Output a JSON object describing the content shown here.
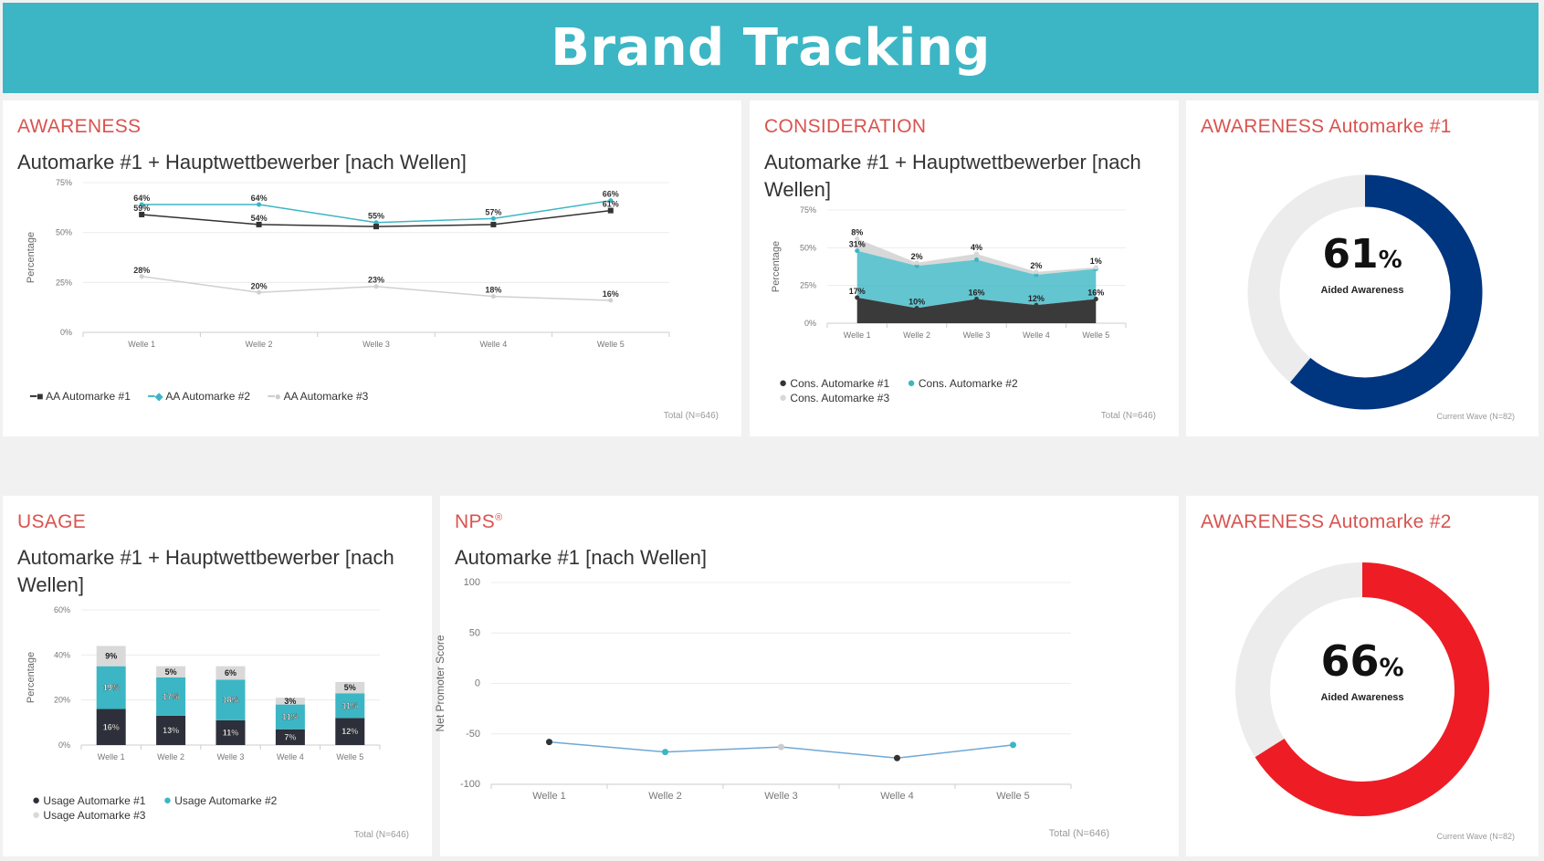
{
  "header": {
    "title": "Brand Tracking"
  },
  "awareness": {
    "title": "AWARENESS",
    "subtitle": "Automarke #1 + Hauptwettbewerber [nach Wellen]",
    "footnote": "Total (N=646)",
    "chart_data": {
      "type": "line",
      "categories": [
        "Welle 1",
        "Welle 2",
        "Welle 3",
        "Welle 4",
        "Welle 5"
      ],
      "ylabel": "Percentage",
      "yticks": [
        "0%",
        "25%",
        "50%",
        "75%"
      ],
      "ylim": [
        0,
        75
      ],
      "series": [
        {
          "name": "AA Automarke #1",
          "color": "#333333",
          "values": [
            59,
            54,
            53,
            54,
            61
          ],
          "labels": [
            "59%",
            "54%",
            "",
            "",
            "61%"
          ]
        },
        {
          "name": "AA Automarke #2",
          "color": "#3cb6c4",
          "values": [
            64,
            64,
            55,
            57,
            66
          ],
          "labels": [
            "64%",
            "64%",
            "55%",
            "57%",
            "66%"
          ]
        },
        {
          "name": "AA Automarke #3",
          "color": "#d0d0d0",
          "values": [
            28,
            20,
            23,
            18,
            16
          ],
          "labels": [
            "28%",
            "20%",
            "23%",
            "18%",
            "16%"
          ]
        }
      ]
    }
  },
  "consideration": {
    "title": "CONSIDERATION",
    "subtitle": "Automarke #1 + Hauptwettbewerber [nach Wellen]",
    "footnote": "Total (N=646)",
    "chart_data": {
      "type": "area",
      "categories": [
        "Welle 1",
        "Welle 2",
        "Welle 3",
        "Welle 4",
        "Welle 5"
      ],
      "ylabel": "Percentage",
      "yticks": [
        "0%",
        "25%",
        "50%",
        "75%"
      ],
      "ylim": [
        0,
        75
      ],
      "stacked": true,
      "series": [
        {
          "name": "Cons. Automarke #1",
          "color": "#3a3a3a",
          "values": [
            17,
            10,
            16,
            12,
            16
          ],
          "labels": [
            "17%",
            "10%",
            "16%",
            "12%",
            "16%"
          ]
        },
        {
          "name": "Cons. Automarke #2",
          "color": "#3cb6c4",
          "values": [
            31,
            28,
            26,
            20,
            20
          ],
          "labels": [
            "31%",
            "",
            "",
            "",
            ""
          ]
        },
        {
          "name": "Cons. Automarke #3",
          "color": "#d8d8d8",
          "values": [
            8,
            2,
            4,
            2,
            1
          ],
          "labels": [
            "8%",
            "2%",
            "4%",
            "2%",
            "1%"
          ]
        }
      ]
    }
  },
  "aw1": {
    "title": "AWARENESS Automarke #1",
    "value": "61",
    "unit": "%",
    "fraction": 0.61,
    "label": "Aided Awareness",
    "color": "#003580",
    "footnote": "Current Wave (N=82)"
  },
  "usage": {
    "title": "USAGE",
    "subtitle": "Automarke #1 + Hauptwettbewerber [nach Wellen]",
    "footnote": "Total (N=646)",
    "chart_data": {
      "type": "bar",
      "stacked": true,
      "categories": [
        "Welle 1",
        "Welle 2",
        "Welle 3",
        "Welle 4",
        "Welle 5"
      ],
      "ylabel": "Percentage",
      "yticks": [
        "0%",
        "20%",
        "40%",
        "60%"
      ],
      "ylim": [
        0,
        60
      ],
      "series": [
        {
          "name": "Usage Automarke #1",
          "color": "#2d2f3a",
          "values": [
            16,
            13,
            11,
            7,
            12
          ],
          "labels": [
            "16%",
            "13%",
            "11%",
            "7%",
            "12%"
          ]
        },
        {
          "name": "Usage Automarke #2",
          "color": "#3cb6c4",
          "values": [
            19,
            17,
            18,
            11,
            11
          ],
          "labels": [
            "19%",
            "17%",
            "18%",
            "11%",
            "11%"
          ]
        },
        {
          "name": "Usage Automarke #3",
          "color": "#d9d9d9",
          "values": [
            9,
            5,
            6,
            3,
            5
          ],
          "labels": [
            "9%",
            "5%",
            "6%",
            "3%",
            "5%"
          ]
        }
      ]
    }
  },
  "nps": {
    "title": "NPS",
    "title_mark": "®",
    "subtitle": "Automarke #1 [nach Wellen]",
    "footnote": "Total (N=646)",
    "chart_data": {
      "type": "line",
      "categories": [
        "Welle 1",
        "Welle 2",
        "Welle 3",
        "Welle 4",
        "Welle 5"
      ],
      "ylabel": "Net Promoter Score",
      "yticks": [
        "-100",
        "-50",
        "0",
        "50",
        "100"
      ],
      "ylim": [
        -100,
        100
      ],
      "series": [
        {
          "name": "NPS",
          "color": "#6fa8d6",
          "values": [
            -58,
            -68,
            -63,
            -74,
            -61
          ],
          "point_colors": [
            "#333333",
            "#3cb6c4",
            "#cccccc",
            "#333333",
            "#3cb6c4"
          ]
        }
      ]
    }
  },
  "aw2": {
    "title": "AWARENESS Automarke #2",
    "value": "66",
    "unit": "%",
    "fraction": 0.66,
    "label": "Aided Awareness",
    "color": "#ee1c25",
    "footnote": "Current Wave (N=82)"
  }
}
